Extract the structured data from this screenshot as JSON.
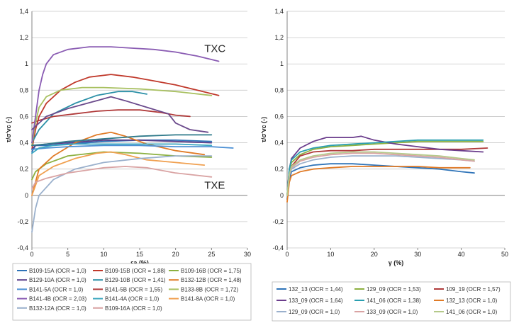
{
  "chart_data": [
    {
      "type": "line",
      "ylabel": "τ/σ'vc (-)",
      "xlabel": "εa (%)",
      "xlim": [
        0,
        30
      ],
      "ylim": [
        -0.4,
        1.4
      ],
      "xticks": [
        0,
        5,
        10,
        15,
        20,
        25,
        30
      ],
      "yticks": [
        -0.4,
        -0.2,
        0,
        0.2,
        0.4,
        0.6,
        0.8,
        1,
        1.2,
        1.4
      ],
      "ytick_labels": [
        "-0,4",
        "-0,2",
        "0",
        "0,2",
        "0,4",
        "0,6",
        "0,8",
        "1",
        "1,2",
        "1,4"
      ],
      "grid": true,
      "legend_position": "bottom",
      "annotations": [
        {
          "text": "TXC",
          "x": 24,
          "y": 1.09
        },
        {
          "text": "TXE",
          "x": 24,
          "y": 0.05
        }
      ],
      "series": [
        {
          "name": "B109-15A (OCR = 1,0)",
          "color": "#2e73b8",
          "x": [
            0,
            0.5,
            2,
            5,
            10,
            15,
            20,
            25
          ],
          "y": [
            0.33,
            0.38,
            0.38,
            0.39,
            0.41,
            0.42,
            0.42,
            0.41
          ]
        },
        {
          "name": "B109-15B (OCR = 1,88)",
          "color": "#c0392b",
          "x": [
            0,
            0.5,
            1,
            2,
            4,
            6,
            8,
            11,
            14,
            17,
            20,
            23,
            26
          ],
          "y": [
            0.35,
            0.5,
            0.6,
            0.7,
            0.8,
            0.86,
            0.9,
            0.92,
            0.9,
            0.87,
            0.84,
            0.8,
            0.76
          ]
        },
        {
          "name": "B109-16B (OCR = 1,75)",
          "color": "#8cb040",
          "x": [
            0,
            0.5,
            2,
            5,
            10,
            15,
            20,
            25
          ],
          "y": [
            0.12,
            0.18,
            0.24,
            0.3,
            0.33,
            0.32,
            0.3,
            0.29
          ]
        },
        {
          "name": "B129-10A (OCR = 1,0)",
          "color": "#5a3e8a",
          "x": [
            0,
            0.5,
            2,
            5,
            10,
            15,
            20,
            25
          ],
          "y": [
            0.35,
            0.38,
            0.39,
            0.4,
            0.42,
            0.42,
            0.41,
            0.4
          ]
        },
        {
          "name": "B129-10B (OCR = 1,41)",
          "color": "#2a8fa6",
          "x": [
            0,
            1,
            3,
            6,
            9,
            12,
            14,
            16
          ],
          "y": [
            0.4,
            0.5,
            0.62,
            0.7,
            0.76,
            0.79,
            0.79,
            0.77
          ]
        },
        {
          "name": "B132-12B (OCR = 1,48)",
          "color": "#e07b27",
          "x": [
            0,
            1,
            3,
            6,
            9,
            11,
            13,
            16,
            20,
            24
          ],
          "y": [
            0.0,
            0.2,
            0.3,
            0.4,
            0.46,
            0.48,
            0.45,
            0.39,
            0.34,
            0.31
          ]
        },
        {
          "name": "B141-5A (OCR = 1,0)",
          "color": "#4a8fd4",
          "x": [
            0,
            2,
            5,
            10,
            15,
            20,
            25,
            28
          ],
          "y": [
            0.35,
            0.36,
            0.37,
            0.38,
            0.38,
            0.37,
            0.37,
            0.36
          ]
        },
        {
          "name": "B141-5B (OCR = 1,55)",
          "color": "#b03a3a",
          "x": [
            0,
            1,
            3,
            6,
            9,
            12,
            15,
            18,
            20,
            22
          ],
          "y": [
            0.55,
            0.57,
            0.6,
            0.62,
            0.64,
            0.65,
            0.65,
            0.63,
            0.61,
            0.6
          ]
        },
        {
          "name": "B133-8B (OCR = 1,72)",
          "color": "#a8c060",
          "x": [
            0,
            0.5,
            1,
            2,
            4,
            7,
            10,
            15,
            20,
            25
          ],
          "y": [
            0.38,
            0.55,
            0.67,
            0.75,
            0.8,
            0.82,
            0.82,
            0.81,
            0.79,
            0.76
          ]
        },
        {
          "name": "B141-4B (OCR = 2,03)",
          "color": "#8a5cb3",
          "x": [
            0,
            0.5,
            1,
            1.5,
            2,
            3,
            5,
            8,
            11,
            14,
            17,
            20,
            23,
            26
          ],
          "y": [
            0.4,
            0.6,
            0.8,
            0.92,
            1.0,
            1.07,
            1.11,
            1.13,
            1.13,
            1.12,
            1.11,
            1.09,
            1.06,
            1.02
          ]
        },
        {
          "name": "B141-4A (OCR = 1,0)",
          "color": "#3ea8c0",
          "x": [
            0,
            1,
            3,
            6,
            10,
            15,
            20,
            25
          ],
          "y": [
            0.32,
            0.36,
            0.38,
            0.39,
            0.39,
            0.39,
            0.39,
            0.38
          ]
        },
        {
          "name": "B141-8A (OCR = 1,0)",
          "color": "#f0a050",
          "x": [
            0,
            1,
            3,
            6,
            9,
            11,
            13,
            16,
            20,
            24
          ],
          "y": [
            0.0,
            0.15,
            0.22,
            0.28,
            0.32,
            0.33,
            0.31,
            0.27,
            0.25,
            0.23
          ]
        },
        {
          "name": "B132-12A (OCR = 1,0)",
          "color": "#9ab0cc",
          "x": [
            0,
            0.5,
            1,
            3,
            6,
            10,
            15,
            20,
            25
          ],
          "y": [
            -0.28,
            -0.1,
            0.0,
            0.12,
            0.2,
            0.25,
            0.28,
            0.3,
            0.3
          ]
        },
        {
          "name": "B109-16A (OCR = 1,0)",
          "color": "#d9a3a3",
          "x": [
            0,
            0.5,
            2,
            5,
            10,
            13,
            16,
            20,
            25
          ],
          "y": [
            0.05,
            0.1,
            0.13,
            0.17,
            0.21,
            0.22,
            0.21,
            0.17,
            0.14
          ]
        },
        {
          "name": "",
          "color": "#2f7a8a",
          "x": [
            0,
            2,
            5,
            10,
            15,
            20,
            25
          ],
          "y": [
            0.38,
            0.39,
            0.41,
            0.43,
            0.45,
            0.46,
            0.46
          ]
        },
        {
          "name": "",
          "color": "#6b4a8c",
          "x": [
            0,
            2,
            5,
            9,
            11,
            13,
            16,
            19,
            20,
            22,
            24.5
          ],
          "y": [
            0.5,
            0.6,
            0.66,
            0.72,
            0.75,
            0.72,
            0.67,
            0.62,
            0.55,
            0.5,
            0.48
          ]
        }
      ]
    },
    {
      "type": "line",
      "ylabel": "τ/σ'vc (-)",
      "xlabel": "γ (%)",
      "xlim": [
        0,
        50
      ],
      "ylim": [
        -0.4,
        1.4
      ],
      "xticks": [
        0,
        10,
        20,
        30,
        40,
        50
      ],
      "yticks": [
        -0.4,
        -0.2,
        0,
        0.2,
        0.4,
        0.6,
        0.8,
        1,
        1.2,
        1.4
      ],
      "ytick_labels": [
        "-0,4",
        "-0,2",
        "0",
        "0,2",
        "0,4",
        "0,6",
        "0,8",
        "1",
        "1,2",
        "1,4"
      ],
      "grid": true,
      "legend_position": "bottom",
      "series": [
        {
          "name": "132_13 (OCR = 1,44)",
          "color": "#2e73b8",
          "x": [
            0,
            0.5,
            1,
            3,
            6,
            10,
            15,
            20,
            25,
            30,
            35,
            40,
            43
          ],
          "y": [
            -0.03,
            0.12,
            0.18,
            0.21,
            0.23,
            0.24,
            0.24,
            0.23,
            0.22,
            0.21,
            0.2,
            0.18,
            0.17
          ]
        },
        {
          "name": "129_09 (OCR = 1,53)",
          "color": "#8cb040",
          "x": [
            0,
            0.5,
            1,
            3,
            6,
            10,
            15,
            20,
            25,
            30,
            35,
            40,
            45
          ],
          "y": [
            0.0,
            0.18,
            0.25,
            0.31,
            0.35,
            0.37,
            0.38,
            0.39,
            0.4,
            0.41,
            0.41,
            0.41,
            0.41
          ]
        },
        {
          "name": "109_19 (OCR = 1,57)",
          "color": "#b03a3a",
          "x": [
            0,
            0.5,
            1,
            3,
            6,
            10,
            15,
            20,
            25,
            30,
            35,
            40,
            46
          ],
          "y": [
            0.0,
            0.15,
            0.22,
            0.3,
            0.33,
            0.34,
            0.34,
            0.35,
            0.35,
            0.35,
            0.35,
            0.35,
            0.36
          ]
        },
        {
          "name": "133_09 (OCR = 1,64)",
          "color": "#6b3d8c",
          "x": [
            0,
            0.5,
            1,
            3,
            6,
            9,
            12,
            15,
            17,
            20,
            25,
            30,
            35,
            40,
            45
          ],
          "y": [
            0.0,
            0.2,
            0.28,
            0.36,
            0.41,
            0.44,
            0.44,
            0.44,
            0.45,
            0.42,
            0.39,
            0.37,
            0.35,
            0.34,
            0.33
          ]
        },
        {
          "name": "141_06 (OCR = 1,38)",
          "color": "#2a9fb0",
          "x": [
            0,
            0.5,
            1,
            3,
            6,
            10,
            15,
            20,
            25,
            30,
            35,
            40,
            45
          ],
          "y": [
            0.0,
            0.2,
            0.27,
            0.33,
            0.36,
            0.38,
            0.39,
            0.4,
            0.41,
            0.42,
            0.42,
            0.42,
            0.42
          ]
        },
        {
          "name": "132_13 (OCR = 1,0)",
          "color": "#e07b27",
          "x": [
            0,
            0.5,
            1,
            3,
            6,
            10,
            15,
            20,
            25,
            30,
            35,
            40,
            42
          ],
          "y": [
            -0.05,
            0.1,
            0.15,
            0.18,
            0.2,
            0.21,
            0.22,
            0.22,
            0.22,
            0.22,
            0.21,
            0.21,
            0.21
          ]
        },
        {
          "name": "129_09 (OCR = 1,0)",
          "color": "#9ab0cc",
          "x": [
            0,
            0.5,
            1,
            3,
            6,
            10,
            15,
            20,
            25,
            30,
            35,
            40,
            43
          ],
          "y": [
            0.0,
            0.15,
            0.2,
            0.24,
            0.27,
            0.29,
            0.3,
            0.3,
            0.3,
            0.29,
            0.28,
            0.27,
            0.26
          ]
        },
        {
          "name": "133_09 (OCR = 1,0)",
          "color": "#d9a3a3",
          "x": [
            0,
            0.5,
            1,
            3,
            6,
            10,
            15,
            20,
            25,
            30,
            35,
            40,
            43
          ],
          "y": [
            0.0,
            0.15,
            0.21,
            0.26,
            0.29,
            0.31,
            0.32,
            0.32,
            0.31,
            0.3,
            0.29,
            0.27,
            0.26
          ]
        },
        {
          "name": "141_06 (OCR = 1,0)",
          "color": "#b5c98a",
          "x": [
            0,
            0.5,
            1,
            3,
            6,
            10,
            15,
            20,
            25,
            30,
            35,
            40,
            43
          ],
          "y": [
            0.0,
            0.16,
            0.22,
            0.27,
            0.3,
            0.32,
            0.33,
            0.33,
            0.32,
            0.31,
            0.3,
            0.28,
            0.27
          ]
        }
      ]
    }
  ]
}
